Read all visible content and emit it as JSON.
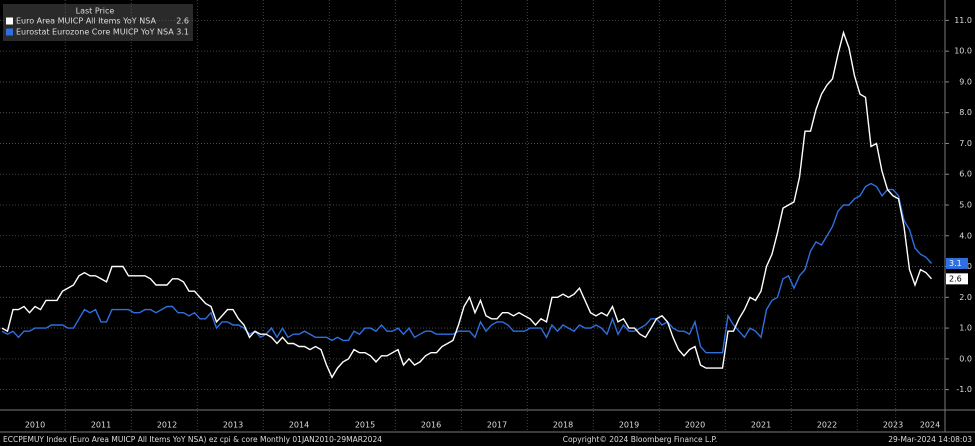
{
  "chart_data": {
    "type": "line",
    "legend_title": "Last Price",
    "source": "ECCPEMUY Index (Euro Area MUICP All Items YoY NSA) ez cpi & core  Monthly 01JAN2010-29MAR2024",
    "copyright": "Copyright© 2024 Bloomberg Finance L.P.",
    "timestamp": "29-Mar-2024 14:08:03",
    "categories": [
      null,
      null,
      null,
      null,
      null,
      null,
      "2010",
      null,
      null,
      null,
      null,
      null,
      null,
      null,
      null,
      null,
      null,
      null,
      "2011",
      null,
      null,
      null,
      null,
      null,
      null,
      null,
      null,
      null,
      null,
      null,
      "2012",
      null,
      null,
      null,
      null,
      null,
      null,
      null,
      null,
      null,
      null,
      null,
      "2013",
      null,
      null,
      null,
      null,
      null,
      null,
      null,
      null,
      null,
      null,
      null,
      "2014",
      null,
      null,
      null,
      null,
      null,
      null,
      null,
      null,
      null,
      null,
      null,
      "2015",
      null,
      null,
      null,
      null,
      null,
      null,
      null,
      null,
      null,
      null,
      null,
      "2016",
      null,
      null,
      null,
      null,
      null,
      null,
      null,
      null,
      null,
      null,
      null,
      "2017",
      null,
      null,
      null,
      null,
      null,
      null,
      null,
      null,
      null,
      null,
      null,
      "2018",
      null,
      null,
      null,
      null,
      null,
      null,
      null,
      null,
      null,
      null,
      null,
      "2019",
      null,
      null,
      null,
      null,
      null,
      null,
      null,
      null,
      null,
      null,
      null,
      "2020",
      null,
      null,
      null,
      null,
      null,
      null,
      null,
      null,
      null,
      null,
      null,
      "2021",
      null,
      null,
      null,
      null,
      null,
      null,
      null,
      null,
      null,
      null,
      null,
      "2022",
      null,
      null,
      null,
      null,
      null,
      null,
      null,
      null,
      null,
      null,
      null,
      "2023",
      null,
      null,
      null,
      null,
      null,
      null,
      "2024"
    ],
    "series": [
      {
        "name": "Euro Area MUICP All Items YoY NSA",
        "color": "#ffffff",
        "values": [
          1.0,
          0.9,
          1.6,
          1.6,
          1.7,
          1.5,
          1.7,
          1.6,
          1.9,
          1.9,
          1.9,
          2.2,
          2.3,
          2.4,
          2.7,
          2.8,
          2.7,
          2.7,
          2.6,
          2.5,
          3.0,
          3.0,
          3.0,
          2.7,
          2.7,
          2.7,
          2.7,
          2.6,
          2.4,
          2.4,
          2.4,
          2.6,
          2.6,
          2.5,
          2.2,
          2.2,
          2.0,
          1.8,
          1.7,
          1.2,
          1.4,
          1.6,
          1.6,
          1.3,
          1.1,
          0.7,
          0.9,
          0.8,
          0.8,
          0.7,
          0.5,
          0.7,
          0.5,
          0.5,
          0.4,
          0.4,
          0.3,
          0.4,
          0.3,
          -0.2,
          -0.6,
          -0.3,
          -0.1,
          0.0,
          0.3,
          0.2,
          0.2,
          0.1,
          -0.1,
          0.1,
          0.1,
          0.2,
          0.3,
          -0.2,
          0.0,
          -0.2,
          -0.1,
          0.1,
          0.2,
          0.2,
          0.4,
          0.5,
          0.6,
          1.1,
          1.7,
          2.0,
          1.5,
          1.9,
          1.4,
          1.3,
          1.3,
          1.5,
          1.5,
          1.4,
          1.5,
          1.4,
          1.3,
          1.1,
          1.3,
          1.2,
          2.0,
          2.0,
          2.1,
          2.0,
          2.1,
          2.3,
          1.9,
          1.5,
          1.4,
          1.5,
          1.4,
          1.7,
          1.2,
          1.3,
          1.0,
          1.0,
          0.8,
          0.7,
          1.0,
          1.3,
          1.4,
          1.2,
          0.7,
          0.3,
          0.1,
          0.3,
          0.4,
          -0.2,
          -0.3,
          -0.3,
          -0.3,
          -0.3,
          0.9,
          0.9,
          1.3,
          1.6,
          2.0,
          1.9,
          2.2,
          3.0,
          3.4,
          4.1,
          4.9,
          5.0,
          5.1,
          5.9,
          7.4,
          7.4,
          8.1,
          8.6,
          8.9,
          9.1,
          9.9,
          10.6,
          10.1,
          9.2,
          8.6,
          8.5,
          6.9,
          7.0,
          6.1,
          5.5,
          5.3,
          5.2,
          4.3,
          2.9,
          2.4,
          2.9,
          2.8,
          2.6
        ]
      },
      {
        "name": "Eurostat Eurozone Core MUICP YoY NSA",
        "color": "#2f6fe0",
        "values": [
          0.9,
          0.8,
          0.9,
          0.7,
          0.9,
          0.9,
          1.0,
          1.0,
          1.0,
          1.1,
          1.1,
          1.1,
          1.0,
          1.0,
          1.3,
          1.6,
          1.5,
          1.6,
          1.2,
          1.2,
          1.6,
          1.6,
          1.6,
          1.6,
          1.5,
          1.5,
          1.6,
          1.6,
          1.5,
          1.6,
          1.7,
          1.7,
          1.5,
          1.5,
          1.4,
          1.5,
          1.3,
          1.3,
          1.5,
          1.0,
          1.2,
          1.2,
          1.1,
          1.1,
          1.0,
          0.8,
          0.9,
          0.7,
          0.8,
          1.0,
          0.7,
          1.0,
          0.7,
          0.8,
          0.8,
          0.9,
          0.8,
          0.7,
          0.7,
          0.7,
          0.6,
          0.7,
          0.6,
          0.6,
          0.9,
          0.8,
          1.0,
          1.0,
          0.9,
          1.1,
          0.9,
          0.9,
          1.0,
          0.8,
          1.0,
          0.7,
          0.8,
          0.9,
          0.9,
          0.8,
          0.8,
          0.8,
          0.8,
          0.9,
          0.9,
          0.9,
          0.7,
          1.2,
          0.9,
          1.1,
          1.2,
          1.2,
          1.1,
          0.9,
          0.9,
          0.9,
          1.0,
          1.0,
          1.0,
          0.7,
          1.1,
          0.9,
          1.1,
          1.0,
          0.9,
          1.1,
          1.0,
          1.0,
          1.1,
          1.0,
          0.8,
          1.3,
          0.8,
          1.1,
          0.9,
          0.9,
          1.0,
          1.1,
          1.3,
          1.3,
          1.1,
          1.2,
          1.0,
          0.9,
          0.9,
          0.8,
          1.2,
          0.4,
          0.2,
          0.2,
          0.2,
          0.2,
          1.4,
          1.1,
          0.9,
          0.7,
          1.0,
          0.9,
          0.7,
          1.6,
          1.9,
          2.0,
          2.6,
          2.7,
          2.3,
          2.7,
          2.9,
          3.5,
          3.8,
          3.7,
          4.0,
          4.3,
          4.8,
          5.0,
          5.0,
          5.2,
          5.3,
          5.6,
          5.7,
          5.6,
          5.3,
          5.5,
          5.5,
          5.3,
          4.5,
          4.2,
          3.6,
          3.4,
          3.3,
          3.1
        ]
      }
    ],
    "ylim": [
      -1.5,
      11.5
    ],
    "yticks": [
      {
        "value": -1,
        "label": "-1.0"
      },
      {
        "value": 0,
        "label": "0.0"
      },
      {
        "value": 1,
        "label": "1.0"
      },
      {
        "value": 2,
        "label": "2.0"
      },
      {
        "value": 3,
        "label": "3.0"
      },
      {
        "value": 4,
        "label": "4.0"
      },
      {
        "value": 5,
        "label": "5.0"
      },
      {
        "value": 6,
        "label": "6.0"
      },
      {
        "value": 7,
        "label": "7.0"
      },
      {
        "value": 8,
        "label": "8.0"
      },
      {
        "value": 9,
        "label": "9.0"
      },
      {
        "value": 10,
        "label": "10.0"
      },
      {
        "value": 11,
        "label": "11.0"
      }
    ],
    "grid": true
  }
}
